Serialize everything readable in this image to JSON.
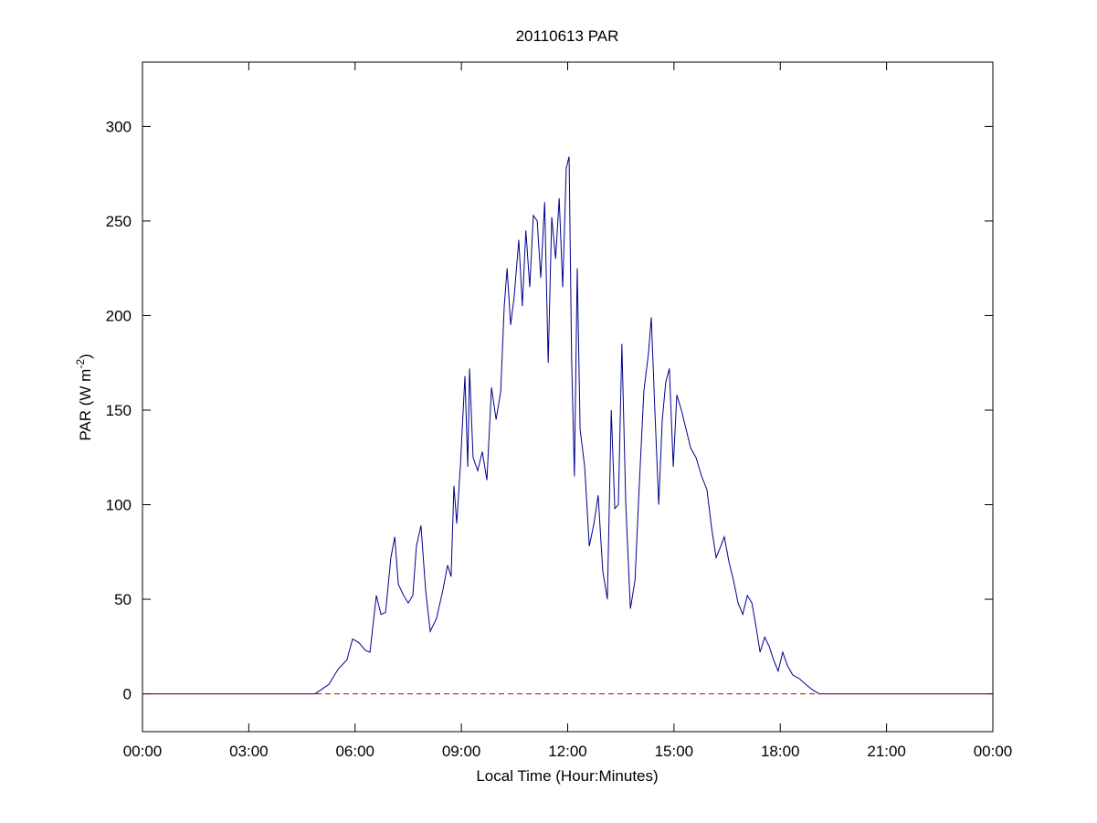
{
  "chart_data": {
    "type": "line",
    "title": "20110613 PAR",
    "x_label": "Local Time (Hour:Minutes)",
    "y_label": [
      "PAR (W m",
      "-2",
      ")"
    ],
    "color": "#00008b",
    "x": [
      0,
      4.5,
      4.87,
      5.26,
      5.52,
      5.77,
      5.93,
      6.11,
      6.29,
      6.42,
      6.6,
      6.73,
      6.86,
      7.01,
      7.12,
      7.22,
      7.37,
      7.5,
      7.63,
      7.73,
      7.86,
      7.99,
      8.12,
      8.3,
      8.48,
      8.61,
      8.71,
      8.79,
      8.87,
      8.97,
      9.1,
      9.18,
      9.23,
      9.33,
      9.46,
      9.59,
      9.72,
      9.85,
      9.98,
      10.11,
      10.21,
      10.29,
      10.39,
      10.49,
      10.62,
      10.72,
      10.82,
      10.93,
      11.03,
      11.14,
      11.24,
      11.35,
      11.45,
      11.55,
      11.66,
      11.76,
      11.86,
      11.96,
      12.04,
      12.11,
      12.19,
      12.27,
      12.35,
      12.48,
      12.61,
      12.74,
      12.86,
      12.99,
      13.12,
      13.23,
      13.33,
      13.43,
      13.53,
      13.64,
      13.77,
      13.9,
      14.02,
      14.15,
      14.28,
      14.36,
      14.46,
      14.57,
      14.67,
      14.77,
      14.87,
      14.98,
      15.08,
      15.21,
      15.34,
      15.47,
      15.62,
      15.78,
      15.93,
      16.06,
      16.19,
      16.32,
      16.42,
      16.55,
      16.68,
      16.81,
      16.94,
      17.07,
      17.2,
      17.32,
      17.43,
      17.56,
      17.69,
      17.81,
      17.94,
      18.07,
      18.2,
      18.35,
      18.54,
      18.72,
      18.92,
      19.1,
      24
    ],
    "values": [
      0,
      0,
      0,
      5,
      13,
      18,
      29,
      27,
      23,
      22,
      52,
      42,
      43,
      72,
      83,
      58,
      52,
      48,
      52,
      78,
      89,
      55,
      33,
      40,
      55,
      68,
      62,
      110,
      90,
      120,
      168,
      120,
      172,
      125,
      118,
      128,
      113,
      162,
      145,
      160,
      205,
      225,
      195,
      210,
      240,
      205,
      245,
      215,
      253,
      250,
      220,
      260,
      175,
      252,
      230,
      262,
      215,
      278,
      284,
      178,
      115,
      225,
      140,
      120,
      78,
      90,
      105,
      65,
      50,
      150,
      98,
      100,
      185,
      100,
      45,
      60,
      110,
      160,
      180,
      199,
      150,
      100,
      145,
      165,
      172,
      120,
      158,
      150,
      140,
      130,
      125,
      115,
      108,
      88,
      72,
      78,
      83,
      70,
      60,
      48,
      42,
      52,
      48,
      35,
      22,
      30,
      25,
      18,
      12,
      22,
      15,
      10,
      8,
      5,
      2,
      0,
      0
    ],
    "reference_line": {
      "value": 0,
      "color": "#c00000",
      "style": "dashed"
    },
    "xlim": [
      0,
      24
    ],
    "xticks": [
      {
        "value": 0,
        "label": "00:00"
      },
      {
        "value": 3,
        "label": "03:00"
      },
      {
        "value": 6,
        "label": "06:00"
      },
      {
        "value": 9,
        "label": "09:00"
      },
      {
        "value": 12,
        "label": "12:00"
      },
      {
        "value": 15,
        "label": "15:00"
      },
      {
        "value": 18,
        "label": "18:00"
      },
      {
        "value": 21,
        "label": "21:00"
      },
      {
        "value": 24,
        "label": "00:00"
      }
    ],
    "ylim": [
      -20,
      334
    ],
    "yticks": [
      0,
      50,
      100,
      150,
      200,
      250,
      300
    ]
  }
}
